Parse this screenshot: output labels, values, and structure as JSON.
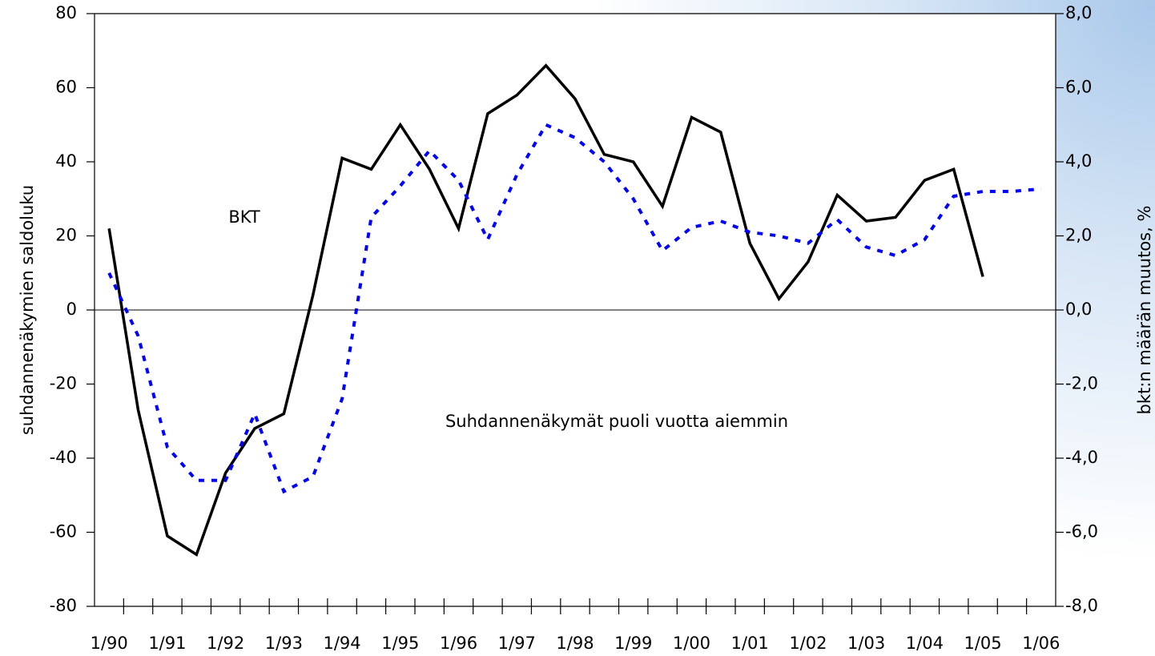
{
  "chart_data": {
    "type": "line",
    "categories": [
      "1/90",
      null,
      "1/91",
      null,
      "1/92",
      null,
      "1/93",
      null,
      "1/94",
      null,
      "1/95",
      null,
      "1/96",
      null,
      "1/97",
      null,
      "1/98",
      null,
      "1/99",
      null,
      "1/00",
      null,
      "1/01",
      null,
      "1/02",
      null,
      "1/03",
      null,
      "1/04",
      null,
      "1/05",
      null,
      "1/06"
    ],
    "ylabel": "suhdannenäkymien saldoluku",
    "y2label": "bkt:n määrän muutos, %",
    "ylim": [
      -80,
      80
    ],
    "yticks": [
      -80,
      -60,
      -40,
      -20,
      0,
      20,
      40,
      60,
      80
    ],
    "y2lim": [
      -8,
      8
    ],
    "y2ticks": [
      {
        "value": -8,
        "label": "-8,0"
      },
      {
        "value": -6,
        "label": "-6,0"
      },
      {
        "value": -4,
        "label": "-4,0"
      },
      {
        "value": -2,
        "label": "-2,0"
      },
      {
        "value": 0,
        "label": "0,0"
      },
      {
        "value": 2,
        "label": "2,0"
      },
      {
        "value": 4,
        "label": "4,0"
      },
      {
        "value": 6,
        "label": "6,0"
      },
      {
        "value": 8,
        "label": "8,0"
      }
    ],
    "series": [
      {
        "name": "BKT",
        "color": "#000000",
        "axis": "y2",
        "dashed": false,
        "values": [
          2.2,
          -2.7,
          -6.1,
          -6.6,
          -4.4,
          -3.2,
          -2.8,
          0.4,
          4.1,
          3.8,
          5.0,
          3.8,
          2.2,
          5.3,
          5.8,
          6.6,
          5.7,
          4.2,
          4.0,
          2.8,
          5.2,
          4.8,
          1.8,
          0.3,
          1.3,
          3.1,
          2.4,
          2.5,
          3.5,
          3.8,
          0.9,
          null,
          null
        ]
      },
      {
        "name": "Suhdannenäkymät puoli vuotta aiemmin",
        "color": "#0000ff",
        "axis": "y",
        "dashed": true,
        "values": [
          10,
          -7,
          -37,
          -46,
          -46,
          -28,
          -49,
          -45,
          -24,
          25,
          33.5,
          43,
          35,
          19,
          36.5,
          50,
          46.5,
          40,
          30,
          16,
          22.3,
          24,
          21,
          20,
          18,
          24.4,
          17,
          14.7,
          19,
          30.7,
          32,
          32,
          32.7
        ]
      }
    ]
  }
}
